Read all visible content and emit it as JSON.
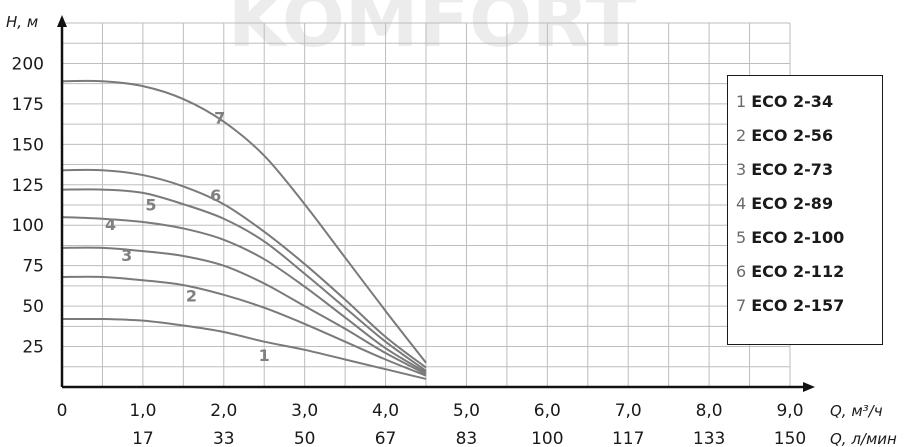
{
  "watermark": "KOMFORT",
  "chart_data": {
    "type": "line",
    "ylabel": "H, м",
    "xlabel_primary": "Q, м³/ч",
    "xlabel_secondary": "Q, л/мин",
    "xlim": [
      0,
      9.0
    ],
    "ylim": [
      0,
      225
    ],
    "y_ticks": [
      25,
      50,
      75,
      100,
      125,
      150,
      175,
      200
    ],
    "y_tick_labels": [
      "25",
      "50",
      "75",
      "100",
      "125",
      "150",
      "175",
      "200"
    ],
    "x_ticks": [
      0,
      1.0,
      2.0,
      3.0,
      4.0,
      5.0,
      6.0,
      7.0,
      8.0,
      9.0
    ],
    "x_tick_labels": [
      "0",
      "1,0",
      "2,0",
      "3,0",
      "4,0",
      "5,0",
      "6,0",
      "7,0",
      "8,0",
      "9,0"
    ],
    "x_tick_labels_secondary": [
      "17",
      "33",
      "50",
      "67",
      "83",
      "100",
      "117",
      "133",
      "150"
    ],
    "x_ticks_secondary": [
      1.0,
      2.0,
      3.0,
      4.0,
      5.0,
      6.0,
      7.0,
      8.0,
      9.0
    ],
    "grid": true,
    "legend": "right",
    "series": [
      {
        "num": "1",
        "name": "ECO 2-34",
        "x": [
          0,
          0.5,
          1.0,
          1.5,
          2.0,
          2.5,
          3.0,
          3.5,
          4.0,
          4.5
        ],
        "y": [
          42,
          42,
          41,
          38,
          34,
          28,
          23,
          17,
          11,
          5
        ]
      },
      {
        "num": "2",
        "name": "ECO 2-56",
        "x": [
          0,
          0.5,
          1.0,
          1.5,
          2.0,
          2.5,
          3.0,
          3.5,
          4.0,
          4.5
        ],
        "y": [
          68,
          68,
          66,
          63,
          57,
          49,
          39,
          28,
          17,
          7
        ]
      },
      {
        "num": "3",
        "name": "ECO 2-73",
        "x": [
          0,
          0.5,
          1.0,
          1.5,
          2.0,
          2.5,
          3.0,
          3.5,
          4.0,
          4.5
        ],
        "y": [
          86,
          86,
          84,
          81,
          75,
          64,
          50,
          36,
          21,
          8
        ]
      },
      {
        "num": "4",
        "name": "ECO 2-89",
        "x": [
          0,
          0.5,
          1.0,
          1.5,
          2.0,
          2.5,
          3.0,
          3.5,
          4.0,
          4.5
        ],
        "y": [
          105,
          104,
          102,
          98,
          91,
          79,
          62,
          43,
          24,
          9
        ]
      },
      {
        "num": "5",
        "name": "ECO 2-100",
        "x": [
          0,
          0.5,
          1.0,
          1.5,
          2.0,
          2.5,
          3.0,
          3.5,
          4.0,
          4.5
        ],
        "y": [
          122,
          122,
          120,
          113,
          104,
          90,
          70,
          49,
          28,
          10
        ]
      },
      {
        "num": "6",
        "name": "ECO 2-112",
        "x": [
          0,
          0.5,
          1.0,
          1.5,
          2.0,
          2.5,
          3.0,
          3.5,
          4.0,
          4.5
        ],
        "y": [
          134,
          134,
          131,
          124,
          113,
          96,
          76,
          54,
          31,
          12
        ]
      },
      {
        "num": "7",
        "name": "ECO 2-157",
        "x": [
          0,
          0.5,
          1.0,
          1.5,
          2.0,
          2.5,
          3.0,
          3.5,
          4.0,
          4.5
        ],
        "y": [
          189,
          189,
          186,
          178,
          164,
          143,
          113,
          80,
          47,
          15
        ]
      }
    ],
    "curve_number_positions": [
      {
        "num": "1",
        "x": 2.5,
        "y": 16
      },
      {
        "num": "2",
        "x": 1.6,
        "y": 53
      },
      {
        "num": "3",
        "x": 0.8,
        "y": 78
      },
      {
        "num": "4",
        "x": 0.6,
        "y": 97
      },
      {
        "num": "5",
        "x": 1.1,
        "y": 109
      },
      {
        "num": "6",
        "x": 1.9,
        "y": 115
      },
      {
        "num": "7",
        "x": 1.95,
        "y": 163
      }
    ]
  }
}
